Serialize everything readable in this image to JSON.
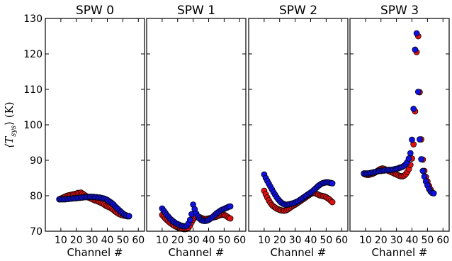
{
  "chart_data": {
    "type": "scatter",
    "ylabel_sym": "⟨T",
    "ylabel_sub": "sys",
    "ylabel_tail": "⟩ (K)",
    "ylim": [
      70,
      130
    ],
    "yticks": [
      70,
      80,
      90,
      100,
      110,
      120,
      130
    ],
    "xlim": [
      0,
      64
    ],
    "xticks": [
      10,
      20,
      30,
      40,
      50,
      60
    ],
    "grid": false,
    "colors": {
      "red": "#e01010",
      "blue": "#1010e0"
    },
    "panels": [
      {
        "title": "SPW 0",
        "xlabel": "Channel #",
        "series": [
          {
            "color": "red",
            "x": [
              9,
              10,
              11,
              12,
              13,
              14,
              15,
              16,
              17,
              18,
              19,
              20,
              21,
              22,
              23,
              24,
              25,
              26,
              27,
              28,
              29,
              30,
              31,
              32,
              33,
              34,
              35,
              36,
              37,
              38,
              39,
              40,
              41,
              42,
              43,
              44,
              45,
              46,
              47,
              48,
              49,
              50,
              51,
              52,
              53,
              54
            ],
            "y": [
              79.0,
              79.2,
              79.4,
              79.6,
              79.8,
              80.0,
              80.1,
              80.2,
              80.3,
              80.4,
              80.5,
              80.6,
              80.8,
              80.8,
              80.9,
              80.6,
              80.3,
              80.0,
              79.7,
              79.5,
              79.3,
              79.1,
              78.9,
              78.7,
              78.6,
              78.4,
              78.2,
              78.0,
              77.8,
              77.5,
              77.2,
              77.0,
              76.8,
              76.6,
              76.3,
              76.0,
              75.6,
              75.3,
              75.0,
              74.8,
              74.6,
              74.5,
              74.4,
              74.3,
              74.2,
              74.2
            ]
          },
          {
            "color": "blue",
            "x": [
              9,
              10,
              11,
              12,
              13,
              14,
              15,
              16,
              17,
              18,
              19,
              20,
              21,
              22,
              23,
              24,
              25,
              26,
              27,
              28,
              29,
              30,
              31,
              32,
              33,
              34,
              35,
              36,
              37,
              38,
              39,
              40,
              41,
              42,
              43,
              44,
              45,
              46,
              47,
              48,
              49,
              50,
              51,
              52,
              53,
              54
            ],
            "y": [
              79.0,
              79.0,
              79.0,
              79.0,
              79.0,
              79.1,
              79.1,
              79.2,
              79.2,
              79.3,
              79.3,
              79.3,
              79.4,
              79.4,
              79.5,
              79.5,
              79.6,
              79.6,
              79.6,
              79.7,
              79.7,
              79.7,
              79.7,
              79.6,
              79.6,
              79.5,
              79.5,
              79.4,
              79.3,
              79.2,
              79.0,
              78.8,
              78.5,
              78.2,
              77.9,
              77.5,
              77.0,
              76.6,
              76.2,
              75.8,
              75.4,
              75.0,
              74.7,
              74.5,
              74.3,
              74.3
            ]
          }
        ]
      },
      {
        "title": "SPW 1",
        "xlabel": "Channel #",
        "series": [
          {
            "color": "red",
            "x": [
              10,
              11,
              12,
              13,
              14,
              15,
              16,
              17,
              18,
              19,
              20,
              21,
              22,
              23,
              24,
              25,
              26,
              27,
              28,
              29,
              30,
              31,
              32,
              33,
              34,
              35,
              36,
              37,
              38,
              39,
              40,
              41,
              42,
              43,
              44,
              45,
              46,
              47,
              48,
              49,
              50,
              51,
              52,
              53,
              54
            ],
            "y": [
              74.6,
              74.1,
              73.6,
              73.2,
              72.8,
              72.4,
              72.1,
              71.8,
              71.5,
              71.3,
              71.1,
              70.9,
              70.8,
              70.7,
              70.6,
              70.6,
              70.7,
              71.0,
              71.6,
              72.5,
              73.3,
              73.8,
              74.1,
              74.2,
              74.0,
              73.8,
              73.6,
              73.5,
              73.4,
              73.5,
              73.6,
              73.7,
              73.8,
              73.9,
              74.0,
              74.1,
              74.3,
              74.5,
              74.6,
              74.7,
              74.6,
              74.4,
              74.1,
              73.8,
              73.6
            ]
          },
          {
            "color": "blue",
            "x": [
              10,
              11,
              12,
              13,
              14,
              15,
              16,
              17,
              18,
              19,
              20,
              21,
              22,
              23,
              24,
              25,
              26,
              27,
              28,
              29,
              30,
              31,
              32,
              33,
              34,
              35,
              36,
              37,
              38,
              39,
              40,
              41,
              42,
              43,
              44,
              45,
              46,
              47,
              48,
              49,
              50,
              51,
              52,
              53,
              54
            ],
            "y": [
              76.4,
              75.8,
              75.2,
              74.6,
              74.1,
              73.6,
              73.2,
              72.8,
              72.5,
              72.2,
              72.0,
              71.8,
              71.6,
              71.5,
              71.4,
              71.4,
              71.6,
              72.2,
              73.2,
              74.8,
              77.5,
              76.2,
              75.0,
              74.2,
              73.6,
              73.2,
              73.0,
              72.9,
              72.9,
              73.0,
              73.2,
              73.5,
              73.8,
              74.2,
              74.6,
              75.0,
              75.3,
              75.6,
              75.9,
              76.1,
              76.3,
              76.5,
              76.7,
              76.9,
              77.0
            ]
          }
        ]
      },
      {
        "title": "SPW 2",
        "xlabel": "Channel #",
        "series": [
          {
            "color": "red",
            "x": [
              10,
              11,
              12,
              13,
              14,
              15,
              16,
              17,
              18,
              19,
              20,
              21,
              22,
              23,
              24,
              25,
              26,
              27,
              28,
              29,
              30,
              31,
              32,
              33,
              34,
              35,
              36,
              37,
              38,
              39,
              40,
              41,
              42,
              43,
              44,
              45,
              46,
              47,
              48,
              49,
              50,
              51,
              52,
              53,
              54
            ],
            "y": [
              81.4,
              80.4,
              79.5,
              78.7,
              78.0,
              77.4,
              77.0,
              76.7,
              76.4,
              76.2,
              76.0,
              75.9,
              75.8,
              75.8,
              75.9,
              76.1,
              76.4,
              76.7,
              77.0,
              77.3,
              77.5,
              77.8,
              78.1,
              78.4,
              78.7,
              79.0,
              79.3,
              79.6,
              79.9,
              80.2,
              80.5,
              80.7,
              80.8,
              80.7,
              80.5,
              80.3,
              80.1,
              80.0,
              79.9,
              79.8,
              79.6,
              79.3,
              79.0,
              78.6,
              78.2
            ]
          },
          {
            "color": "blue",
            "x": [
              10,
              11,
              12,
              13,
              14,
              15,
              16,
              17,
              18,
              19,
              20,
              21,
              22,
              23,
              24,
              25,
              26,
              27,
              28,
              29,
              30,
              31,
              32,
              33,
              34,
              35,
              36,
              37,
              38,
              39,
              40,
              41,
              42,
              43,
              44,
              45,
              46,
              47,
              48,
              49,
              50,
              51,
              52,
              53,
              54
            ],
            "y": [
              86.0,
              85.0,
              84.2,
              83.4,
              82.6,
              81.8,
              81.0,
              80.3,
              79.6,
              79.0,
              78.5,
              78.1,
              77.8,
              77.6,
              77.5,
              77.5,
              77.6,
              77.7,
              77.8,
              77.9,
              78.1,
              78.3,
              78.5,
              78.8,
              79.1,
              79.4,
              79.7,
              80.0,
              80.3,
              80.6,
              80.9,
              81.2,
              81.6,
              82.0,
              82.4,
              82.8,
              83.1,
              83.4,
              83.6,
              83.7,
              83.8,
              83.8,
              83.7,
              83.6,
              83.5
            ]
          }
        ]
      },
      {
        "title": "SPW 3",
        "xlabel": "Channel #",
        "series": [
          {
            "color": "red",
            "x": [
              9,
              10,
              11,
              12,
              13,
              14,
              15,
              16,
              17,
              18,
              19,
              20,
              21,
              22,
              23,
              24,
              25,
              26,
              27,
              28,
              29,
              30,
              31,
              32,
              33,
              34,
              35,
              36,
              37,
              38,
              39,
              40,
              41,
              42,
              43,
              44,
              45,
              46,
              47,
              48,
              49,
              50,
              51,
              52,
              53,
              54
            ],
            "y": [
              86.2,
              86.0,
              85.9,
              85.9,
              86.0,
              86.1,
              86.3,
              86.5,
              86.8,
              87.1,
              87.4,
              87.6,
              87.7,
              87.6,
              87.4,
              87.2,
              87.0,
              86.8,
              86.6,
              86.4,
              86.2,
              86.0,
              85.8,
              85.6,
              85.5,
              85.5,
              85.7,
              86.1,
              86.7,
              87.5,
              88.7,
              90.5,
              94.5,
              103.8,
              120.5,
              125.0,
              109.2,
              95.9,
              90.2,
              87.0,
              85.3,
              84.0,
              82.8,
              81.8,
              81.0,
              80.7
            ]
          },
          {
            "color": "blue",
            "x": [
              9,
              10,
              11,
              12,
              13,
              14,
              15,
              16,
              17,
              18,
              19,
              20,
              21,
              22,
              23,
              24,
              25,
              26,
              27,
              28,
              29,
              30,
              31,
              32,
              33,
              34,
              35,
              36,
              37,
              38,
              39,
              40,
              41,
              42,
              43,
              44,
              45,
              46,
              47,
              48,
              49,
              50,
              51,
              52,
              53,
              54
            ],
            "y": [
              86.3,
              86.3,
              86.3,
              86.3,
              86.4,
              86.5,
              86.6,
              86.7,
              86.8,
              86.9,
              87.0,
              87.0,
              87.1,
              87.1,
              87.2,
              87.2,
              87.3,
              87.3,
              87.3,
              87.4,
              87.5,
              87.6,
              87.7,
              87.9,
              88.0,
              88.2,
              88.5,
              88.9,
              89.5,
              90.5,
              92.0,
              95.8,
              104.5,
              121.2,
              125.8,
              109.3,
              95.9,
              90.3,
              87.0,
              85.4,
              84.0,
              82.9,
              81.9,
              81.2,
              80.8,
              80.7
            ]
          }
        ]
      }
    ]
  }
}
